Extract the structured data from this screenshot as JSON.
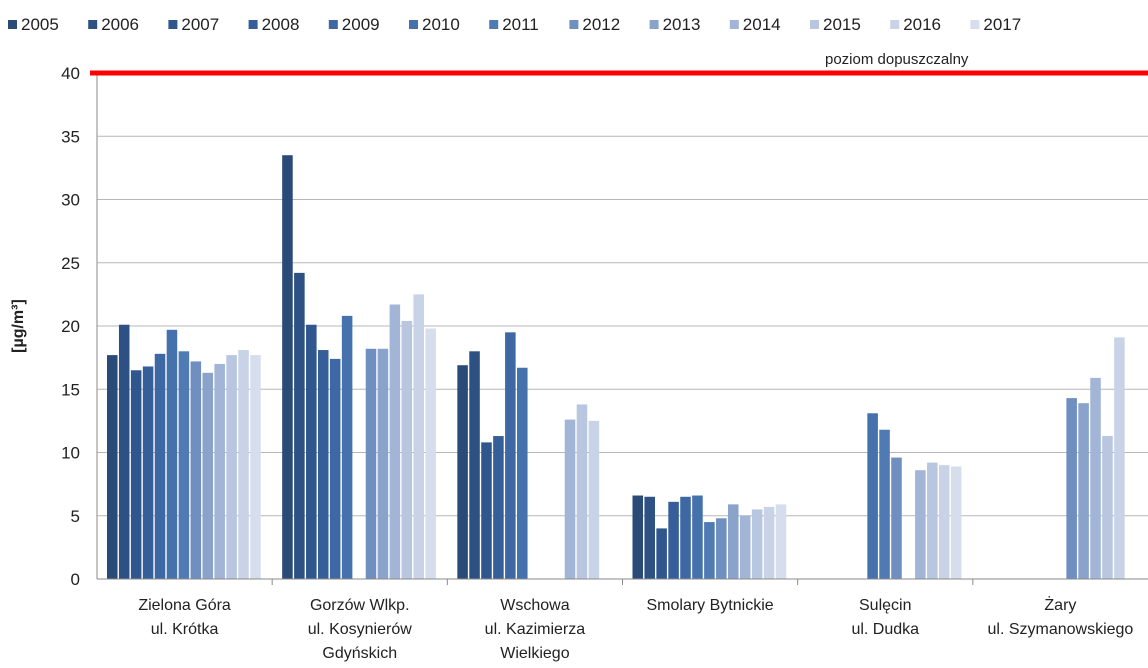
{
  "chart_data": {
    "type": "bar",
    "title": "",
    "xlabel": "",
    "ylabel": "[µg/m³]",
    "ylim": [
      0,
      40
    ],
    "yticks": [
      "0",
      "5",
      "10",
      "15",
      "20",
      "25",
      "30",
      "35",
      "40"
    ],
    "grid": true,
    "legend_position": "top",
    "categories": [
      "Zielona Góra\nul. Krótka",
      "Gorzów Wlkp.\nul. Kosynierów\nGdyńskich",
      "Wschowa\nul. Kazimierza\nWielkiego",
      "Smolary Bytnickie",
      "Sulęcin\nul. Dudka",
      "Żary\nul. Szymanowskiego"
    ],
    "series": [
      {
        "name": "2005",
        "color": "#2a4a78",
        "values": [
          17.7,
          33.5,
          16.9,
          6.6,
          null,
          null
        ]
      },
      {
        "name": "2006",
        "color": "#2d5183",
        "values": [
          20.1,
          24.2,
          18.0,
          6.5,
          null,
          null
        ]
      },
      {
        "name": "2007",
        "color": "#30578d",
        "values": [
          16.5,
          20.1,
          10.8,
          4.0,
          null,
          null
        ]
      },
      {
        "name": "2008",
        "color": "#365f99",
        "values": [
          16.8,
          18.1,
          11.3,
          6.1,
          null,
          null
        ]
      },
      {
        "name": "2009",
        "color": "#3d68a4",
        "values": [
          17.8,
          17.4,
          19.5,
          6.5,
          null,
          null
        ]
      },
      {
        "name": "2010",
        "color": "#4571ad",
        "values": [
          19.7,
          20.8,
          16.7,
          6.6,
          13.1,
          null
        ]
      },
      {
        "name": "2011",
        "color": "#4f7ab3",
        "values": [
          18.0,
          null,
          null,
          4.5,
          11.8,
          null
        ]
      },
      {
        "name": "2012",
        "color": "#6e8fc0",
        "values": [
          17.2,
          18.2,
          null,
          4.8,
          9.6,
          14.3
        ]
      },
      {
        "name": "2013",
        "color": "#8aa3cb",
        "values": [
          16.3,
          18.2,
          null,
          5.9,
          null,
          13.9
        ]
      },
      {
        "name": "2014",
        "color": "#a3b5d6",
        "values": [
          17.0,
          21.7,
          12.6,
          5.0,
          8.6,
          15.9
        ]
      },
      {
        "name": "2015",
        "color": "#b8c6df",
        "values": [
          17.7,
          20.4,
          13.8,
          5.5,
          9.2,
          11.3
        ]
      },
      {
        "name": "2016",
        "color": "#c9d3e7",
        "values": [
          18.1,
          22.5,
          12.5,
          5.7,
          9.0,
          19.1
        ]
      },
      {
        "name": "2017",
        "color": "#d6deee",
        "values": [
          17.7,
          19.8,
          null,
          5.9,
          8.9,
          null
        ]
      }
    ],
    "limit_line": {
      "value": 40,
      "label": "poziom dopuszczalny",
      "color": "#ff0000"
    }
  }
}
